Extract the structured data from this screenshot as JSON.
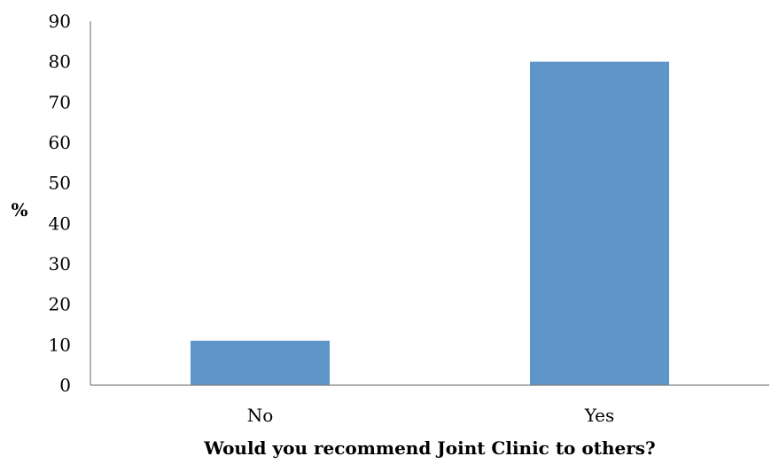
{
  "chart_data": {
    "type": "bar",
    "categories": [
      "No",
      "Yes"
    ],
    "values": [
      11,
      80
    ],
    "xlabel": "Would you recommend Joint Clinic to others?",
    "ylabel": "%",
    "ylim": [
      0,
      90
    ],
    "yticks": [
      "0",
      "10",
      "20",
      "30",
      "40",
      "50",
      "60",
      "70",
      "80",
      "90"
    ],
    "grid": false,
    "legend": "none",
    "bar_color": "#5f95c9"
  }
}
